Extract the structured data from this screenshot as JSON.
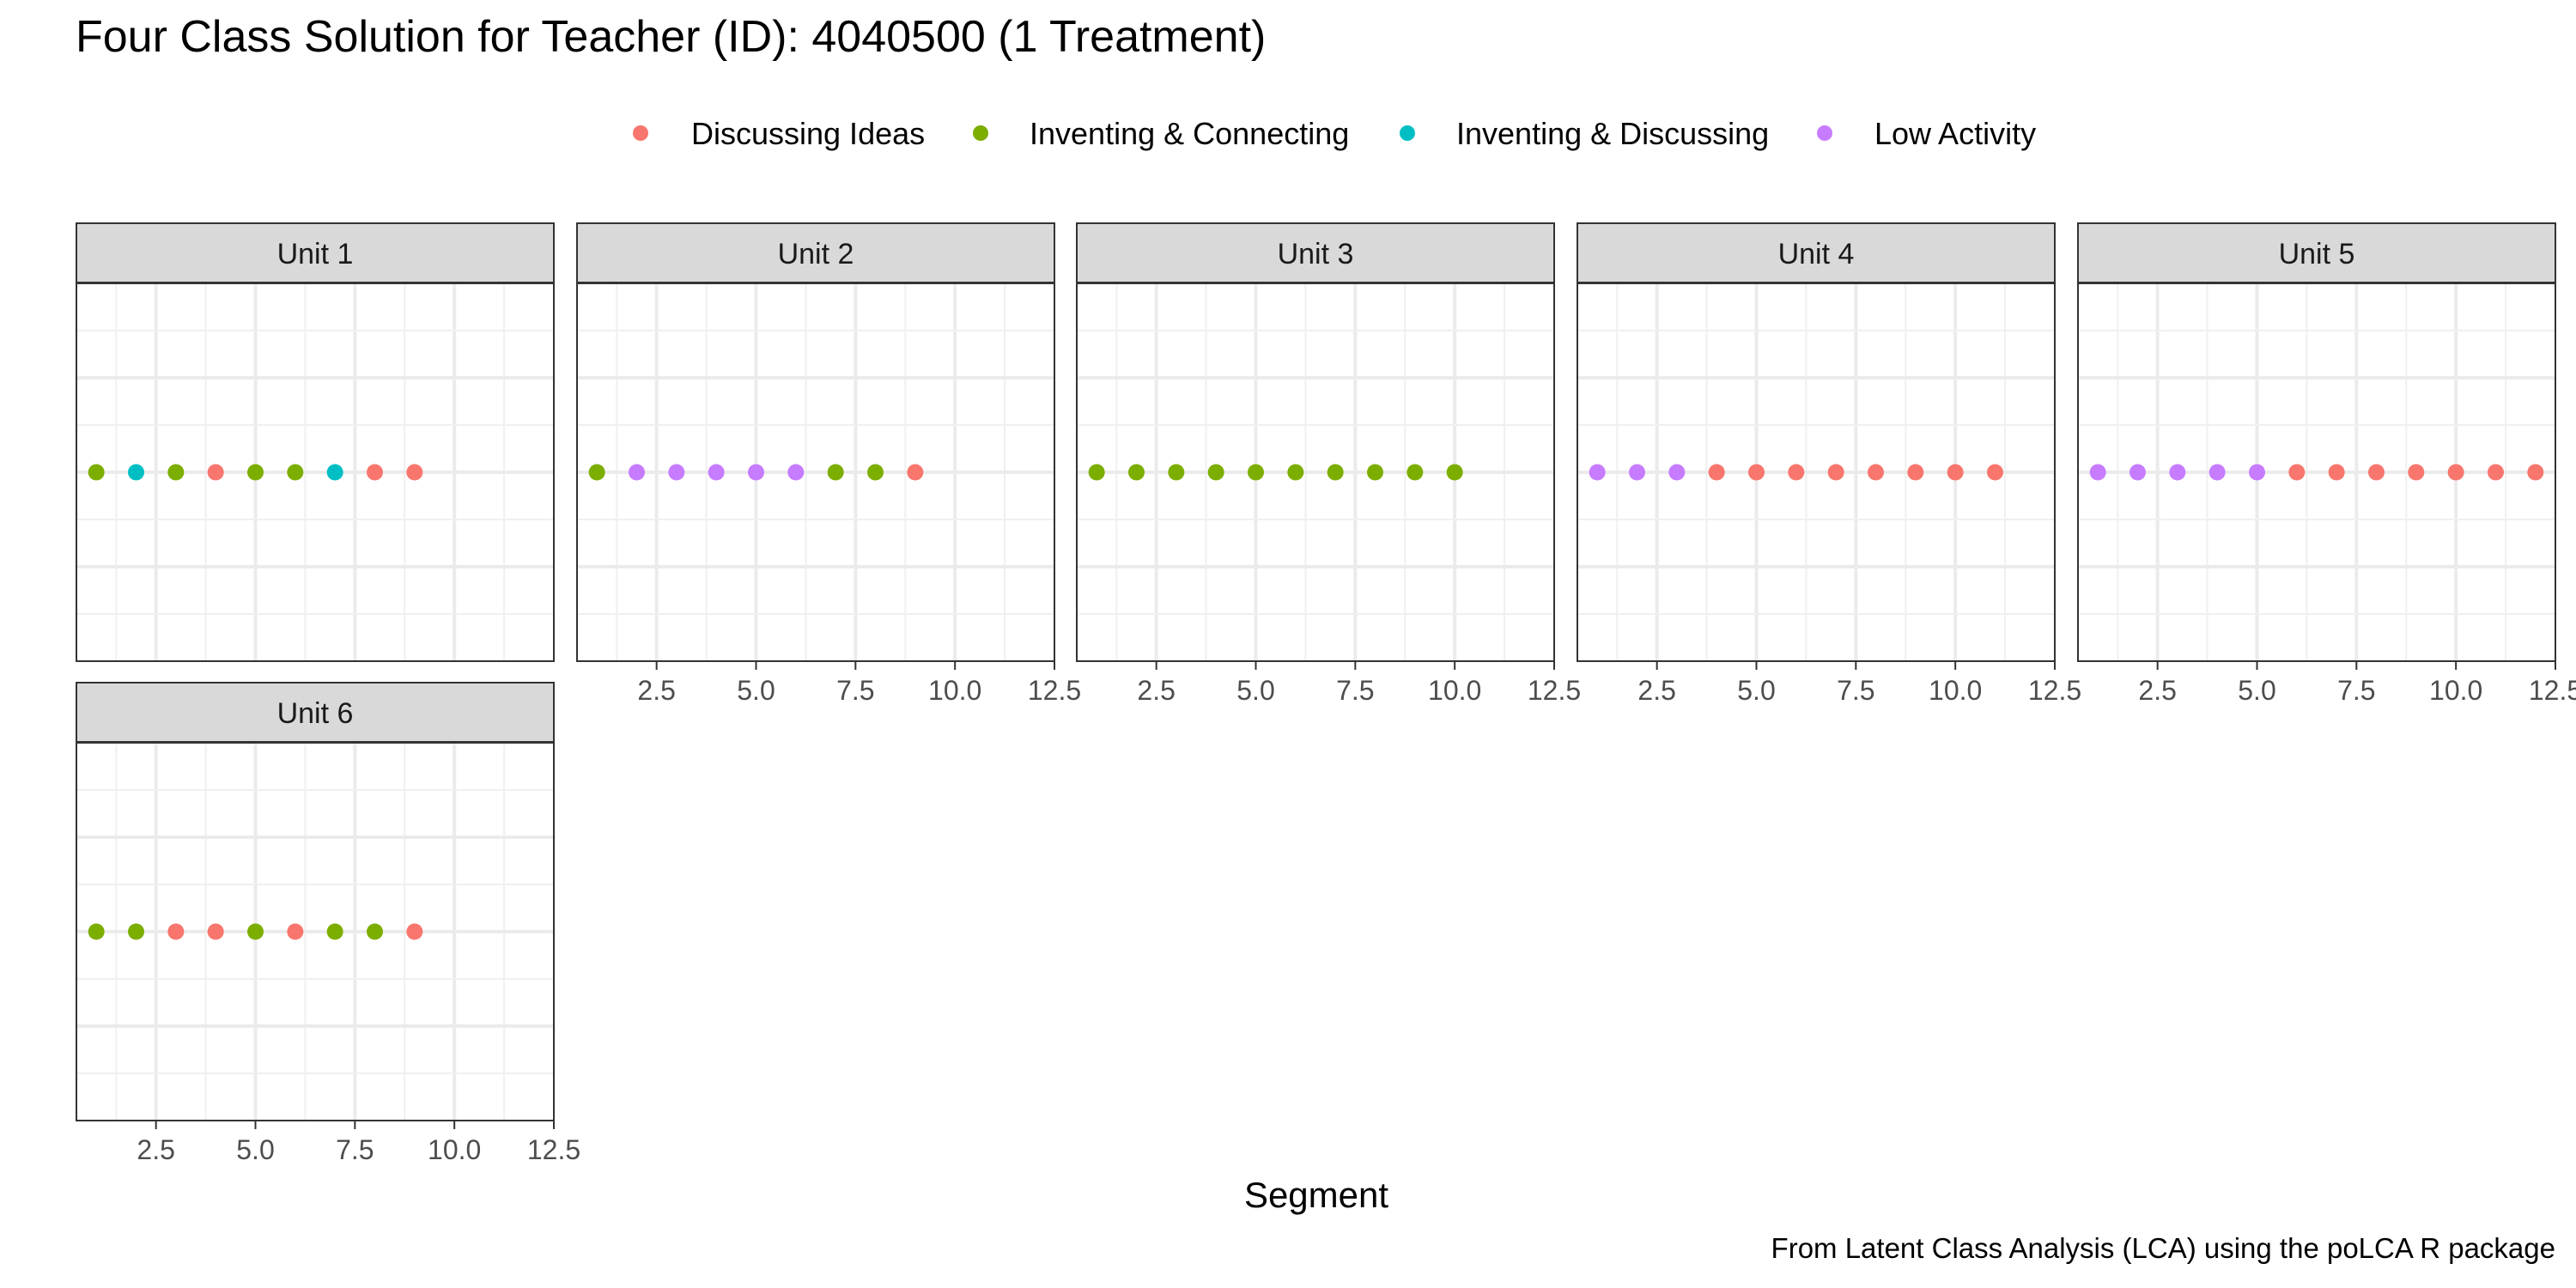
{
  "chart_data": {
    "type": "scatter",
    "title": "Four Class Solution for Teacher (ID): 4040500 (1 Treatment)",
    "xlabel": "Segment",
    "ylabel": "",
    "caption": "From Latent Class Analysis (LCA) using the poLCA R package",
    "xlim": [
      0.5,
      12.5
    ],
    "x_ticks": [
      2.5,
      5.0,
      7.5,
      10.0,
      12.5
    ],
    "x_tick_labels": [
      "2.5",
      "5.0",
      "7.5",
      "10.0",
      "12.5"
    ],
    "grid": true,
    "legend_position": "top",
    "classes": [
      {
        "name": "Discussing Ideas",
        "color": "#F8766D"
      },
      {
        "name": "Inventing & Connecting",
        "color": "#7CAE00"
      },
      {
        "name": "Inventing & Discussing",
        "color": "#00BFC4"
      },
      {
        "name": "Low Activity",
        "color": "#C77CFF"
      }
    ],
    "panels": [
      {
        "label": "Unit 1",
        "x": [
          1,
          2,
          3,
          4,
          5,
          6,
          7,
          8,
          9
        ],
        "class": [
          "Inventing & Connecting",
          "Inventing & Discussing",
          "Inventing & Connecting",
          "Discussing Ideas",
          "Inventing & Connecting",
          "Inventing & Connecting",
          "Inventing & Discussing",
          "Discussing Ideas",
          "Discussing Ideas"
        ]
      },
      {
        "label": "Unit 2",
        "x": [
          1,
          2,
          3,
          4,
          5,
          6,
          7,
          8,
          9
        ],
        "class": [
          "Inventing & Connecting",
          "Low Activity",
          "Low Activity",
          "Low Activity",
          "Low Activity",
          "Low Activity",
          "Inventing & Connecting",
          "Inventing & Connecting",
          "Discussing Ideas"
        ]
      },
      {
        "label": "Unit 3",
        "x": [
          1,
          2,
          3,
          4,
          5,
          6,
          7,
          8,
          9,
          10
        ],
        "class": [
          "Inventing & Connecting",
          "Inventing & Connecting",
          "Inventing & Connecting",
          "Inventing & Connecting",
          "Inventing & Connecting",
          "Inventing & Connecting",
          "Inventing & Connecting",
          "Inventing & Connecting",
          "Inventing & Connecting",
          "Inventing & Connecting"
        ]
      },
      {
        "label": "Unit 4",
        "x": [
          1,
          2,
          3,
          4,
          5,
          6,
          7,
          8,
          9,
          10,
          11
        ],
        "class": [
          "Low Activity",
          "Low Activity",
          "Low Activity",
          "Discussing Ideas",
          "Discussing Ideas",
          "Discussing Ideas",
          "Discussing Ideas",
          "Discussing Ideas",
          "Discussing Ideas",
          "Discussing Ideas",
          "Discussing Ideas"
        ]
      },
      {
        "label": "Unit 5",
        "x": [
          1,
          2,
          3,
          4,
          5,
          6,
          7,
          8,
          9,
          10,
          11,
          12
        ],
        "class": [
          "Low Activity",
          "Low Activity",
          "Low Activity",
          "Low Activity",
          "Low Activity",
          "Discussing Ideas",
          "Discussing Ideas",
          "Discussing Ideas",
          "Discussing Ideas",
          "Discussing Ideas",
          "Discussing Ideas",
          "Discussing Ideas"
        ]
      },
      {
        "label": "Unit 6",
        "x": [
          1,
          2,
          3,
          4,
          5,
          6,
          7,
          8,
          9
        ],
        "class": [
          "Inventing & Connecting",
          "Inventing & Connecting",
          "Discussing Ideas",
          "Discussing Ideas",
          "Inventing & Connecting",
          "Discussing Ideas",
          "Inventing & Connecting",
          "Inventing & Connecting",
          "Discussing Ideas"
        ]
      }
    ]
  }
}
